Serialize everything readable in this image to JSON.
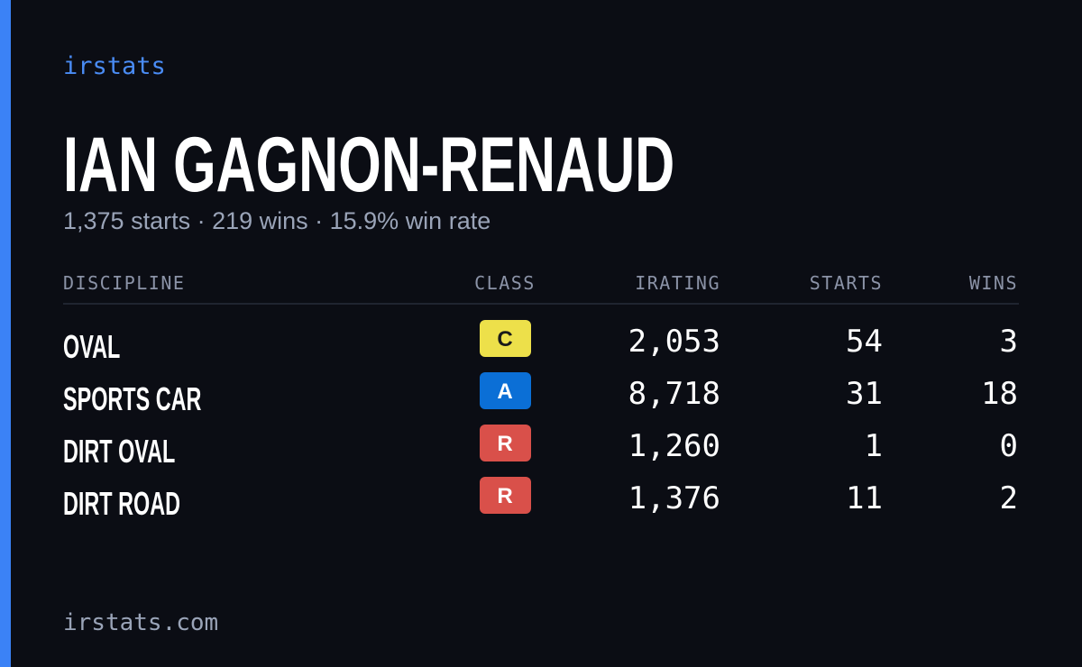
{
  "brand": "irstats",
  "driver": {
    "name": "IAN GAGNON-RENAUD",
    "summary": "1,375 starts · 219 wins · 15.9% win rate"
  },
  "table": {
    "headers": [
      "DISCIPLINE",
      "CLASS",
      "IRATING",
      "STARTS",
      "WINS"
    ],
    "rows": [
      {
        "discipline": "OVAL",
        "class": "C",
        "class_color": "#ede04a",
        "class_text_color": "#1a1a1a",
        "irating": "2,053",
        "starts": "54",
        "wins": "3"
      },
      {
        "discipline": "SPORTS CAR",
        "class": "A",
        "class_color": "#0b6fd6",
        "class_text_color": "#ffffff",
        "irating": "8,718",
        "starts": "31",
        "wins": "18"
      },
      {
        "discipline": "DIRT OVAL",
        "class": "R",
        "class_color": "#d9504a",
        "class_text_color": "#ffffff",
        "irating": "1,260",
        "starts": "1",
        "wins": "0"
      },
      {
        "discipline": "DIRT ROAD",
        "class": "R",
        "class_color": "#d9504a",
        "class_text_color": "#ffffff",
        "irating": "1,376",
        "starts": "11",
        "wins": "2"
      }
    ]
  },
  "footer": "irstats.com"
}
